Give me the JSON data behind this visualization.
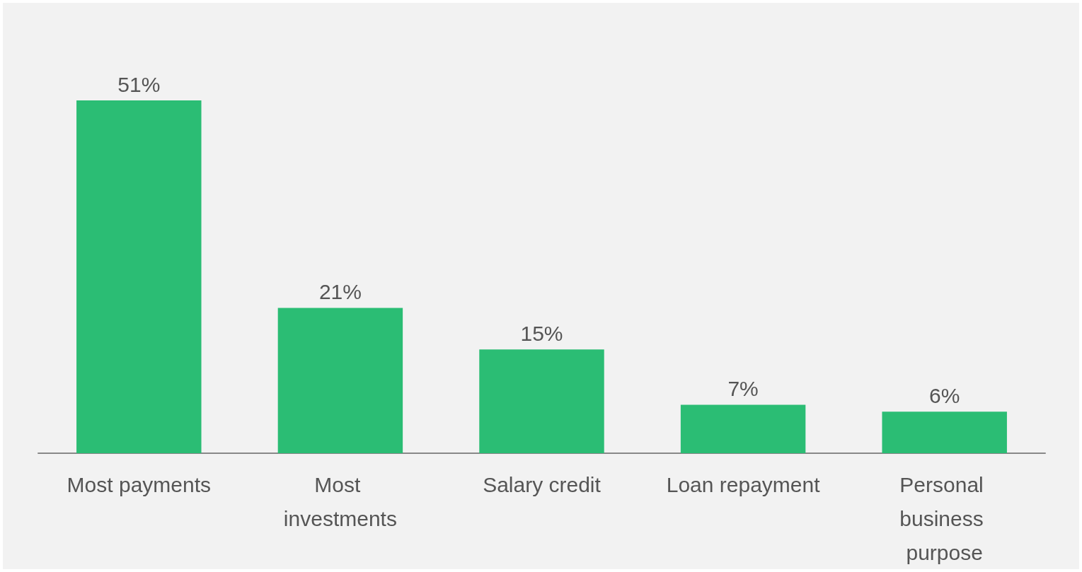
{
  "chart_data": {
    "type": "bar",
    "tick_labels": "x",
    "categories": [
      "Most payments",
      "Most investments",
      "Salary credit",
      "Loan repayment",
      "Personal business purpose"
    ],
    "values": [
      51,
      21,
      15,
      7,
      6
    ],
    "value_labels": [
      "51%",
      "21%",
      "15%",
      "7%",
      "6%"
    ],
    "color": "#2bbd74"
  }
}
